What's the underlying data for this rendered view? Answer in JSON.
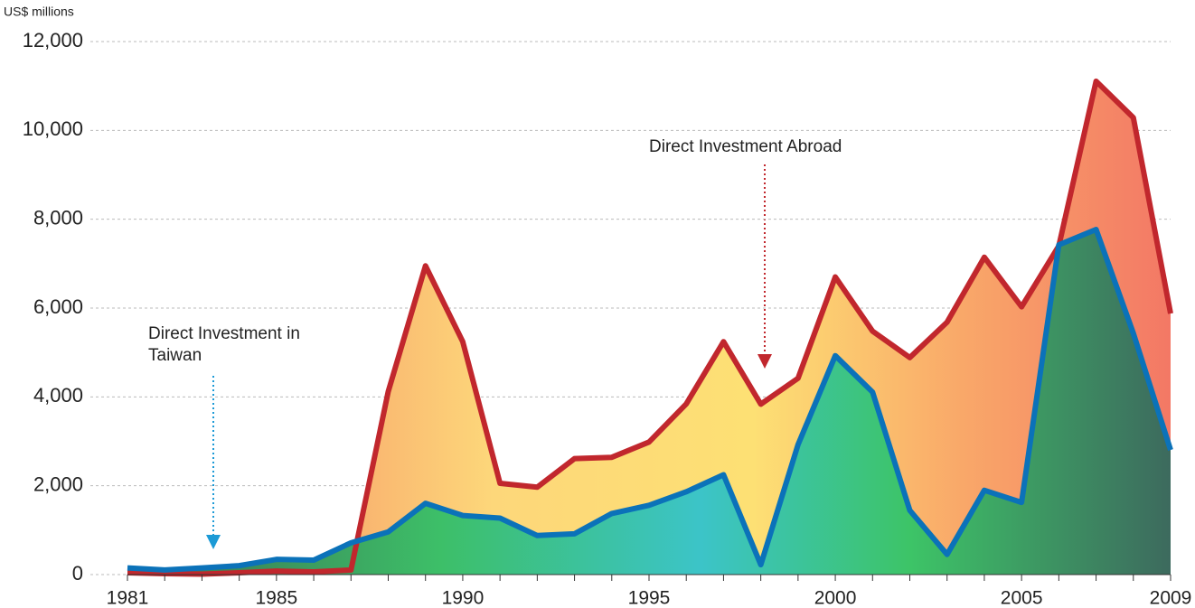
{
  "chart_data": {
    "type": "area-line",
    "y_label": "US$ millions",
    "x": [
      1981,
      1982,
      1983,
      1984,
      1985,
      1986,
      1987,
      1988,
      1989,
      1990,
      1991,
      1992,
      1993,
      1994,
      1995,
      1996,
      1997,
      1998,
      1999,
      2000,
      2001,
      2002,
      2003,
      2004,
      2005,
      2006,
      2007,
      2008,
      2009
    ],
    "xlim": [
      1981,
      2009
    ],
    "xticks": [
      1981,
      1985,
      1990,
      1995,
      2000,
      2005,
      2009
    ],
    "ylim": [
      0,
      12000
    ],
    "yticks": [
      0,
      {
        "value": 2000,
        "label": "2,000"
      },
      {
        "value": 4000,
        "label": "4,000"
      },
      {
        "value": 6000,
        "label": "6,000"
      },
      {
        "value": 8000,
        "label": "8,000"
      },
      {
        "value": 10000,
        "label": "10,000"
      },
      {
        "value": 12000,
        "label": "12,000"
      }
    ],
    "grid": true,
    "series": [
      {
        "name": "Direct Investment Abroad",
        "color": "#c1272d",
        "values": [
          40,
          20,
          10,
          40,
          80,
          60,
          103,
          4121,
          6951,
          5243,
          2055,
          1967,
          2611,
          2640,
          2983,
          3843,
          5243,
          3836,
          4420,
          6701,
          5480,
          4886,
          5682,
          7145,
          6028,
          7399,
          11107,
          10287,
          5877
        ]
      },
      {
        "name": "Direct Investment in Taiwan",
        "color": "#0b72b9",
        "values": [
          151,
          104,
          149,
          201,
          342,
          326,
          715,
          961,
          1604,
          1330,
          1271,
          879,
          917,
          1375,
          1559,
          1864,
          2248,
          222,
          2926,
          4928,
          4109,
          1445,
          453,
          1898,
          1625,
          7424,
          7769,
          5432,
          2805
        ]
      }
    ]
  }
}
